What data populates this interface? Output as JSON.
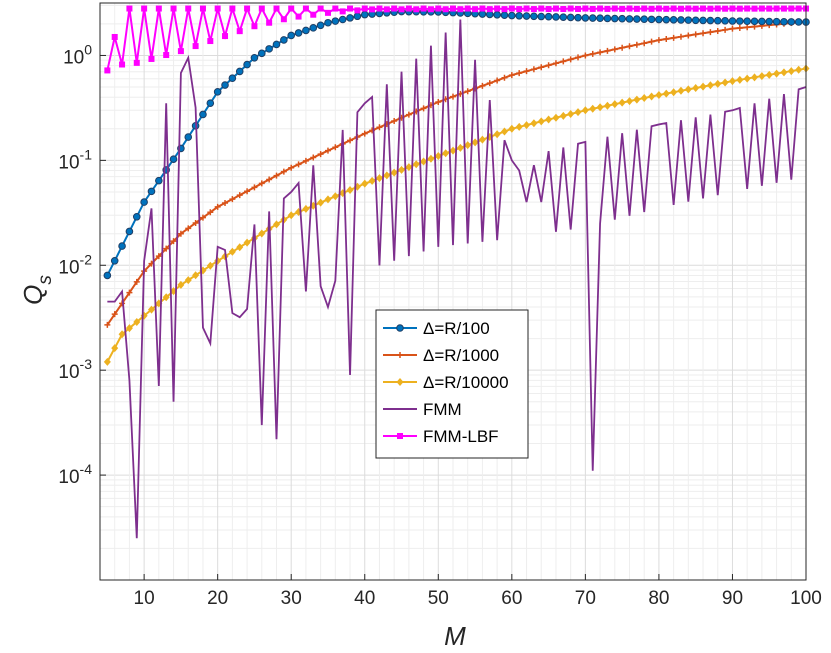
{
  "chart_data": {
    "type": "line",
    "title": "",
    "xlabel": "M",
    "ylabel": "Q",
    "ylabel_subscript": "s",
    "xscale": "linear",
    "yscale": "log",
    "xlim": [
      4,
      100
    ],
    "ylim_exponent": [
      -5,
      0.5
    ],
    "grid": "major+minor",
    "legend_position": "center",
    "x_ticks": [
      10,
      20,
      30,
      40,
      50,
      60,
      70,
      80,
      90,
      100
    ],
    "x_tick_labels": [
      "10",
      "20",
      "30",
      "40",
      "50",
      "60",
      "70",
      "80",
      "90",
      "100"
    ],
    "y_ticks": [
      {
        "base": "10",
        "exp": "0",
        "value": 1
      },
      {
        "base": "10",
        "exp": "-1",
        "value": 0.1
      },
      {
        "base": "10",
        "exp": "-2",
        "value": 0.01
      },
      {
        "base": "10",
        "exp": "-3",
        "value": 0.001
      },
      {
        "base": "10",
        "exp": "-4",
        "value": 0.0001
      }
    ],
    "series": [
      {
        "name": "Δ=R/100",
        "color": "#0072BD",
        "marker": "circle",
        "model": "saturating",
        "x_start": 5,
        "x_end": 100,
        "anchors": [
          [
            5,
            0.008
          ],
          [
            10,
            0.04
          ],
          [
            15,
            0.13
          ],
          [
            20,
            0.45
          ],
          [
            25,
            0.95
          ],
          [
            30,
            1.55
          ],
          [
            35,
            2.05
          ],
          [
            40,
            2.45
          ],
          [
            45,
            2.62
          ],
          [
            50,
            2.6
          ],
          [
            55,
            2.5
          ],
          [
            60,
            2.4
          ],
          [
            70,
            2.28
          ],
          [
            80,
            2.2
          ],
          [
            90,
            2.13
          ],
          [
            100,
            2.08
          ]
        ]
      },
      {
        "name": "Δ=R/1000",
        "color": "#D95319",
        "marker": "plus",
        "model": "smooth",
        "x_start": 5,
        "x_end": 100,
        "anchors": [
          [
            5,
            0.0027
          ],
          [
            10,
            0.0088
          ],
          [
            15,
            0.02
          ],
          [
            20,
            0.036
          ],
          [
            30,
            0.085
          ],
          [
            40,
            0.18
          ],
          [
            50,
            0.36
          ],
          [
            60,
            0.65
          ],
          [
            70,
            1.0
          ],
          [
            80,
            1.4
          ],
          [
            90,
            1.8
          ],
          [
            100,
            2.1
          ]
        ]
      },
      {
        "name": "Δ=R/10000",
        "color": "#EDB120",
        "marker": "diamond",
        "model": "smooth",
        "x_start": 5,
        "x_end": 100,
        "anchors": [
          [
            5,
            0.0012
          ],
          [
            7,
            0.0022
          ],
          [
            10,
            0.0033
          ],
          [
            15,
            0.0065
          ],
          [
            20,
            0.011
          ],
          [
            30,
            0.03
          ],
          [
            40,
            0.06
          ],
          [
            50,
            0.11
          ],
          [
            60,
            0.2
          ],
          [
            70,
            0.3
          ],
          [
            80,
            0.42
          ],
          [
            90,
            0.57
          ],
          [
            100,
            0.75
          ]
        ]
      },
      {
        "name": "FMM",
        "color": "#7E2F8E",
        "marker": "none",
        "model": "oscillating",
        "x_start": 5,
        "x_end": 100,
        "highs": [
          [
            6,
            0.0045
          ],
          [
            10,
            0.011
          ],
          [
            13,
            0.35
          ],
          [
            16,
            0.95
          ],
          [
            20,
            0.012
          ],
          [
            30,
            0.05
          ],
          [
            40,
            0.35
          ],
          [
            45,
            0.7
          ],
          [
            53,
            2.2
          ],
          [
            60,
            0.1
          ],
          [
            70,
            0.15
          ],
          [
            80,
            0.22
          ],
          [
            90,
            0.3
          ],
          [
            100,
            0.5
          ]
        ],
        "lows": [
          [
            7,
            0.001
          ],
          [
            11,
            0.0005
          ],
          [
            15,
            0.002
          ],
          [
            22,
            0.0035
          ],
          [
            30,
            0.005
          ],
          [
            40,
            0.009
          ],
          [
            50,
            0.015
          ],
          [
            60,
            0.018
          ],
          [
            70,
            0.023
          ],
          [
            80,
            0.035
          ],
          [
            90,
            0.05
          ],
          [
            100,
            0.07
          ]
        ],
        "dips": [
          [
            8,
            0.0008
          ],
          [
            9,
            2.5e-05
          ],
          [
            14,
            0.0005
          ],
          [
            19,
            0.0018
          ],
          [
            23,
            0.0032
          ],
          [
            26,
            0.0003
          ],
          [
            28,
            0.00022
          ],
          [
            35,
            0.004
          ],
          [
            38,
            0.0009
          ],
          [
            71,
            0.00011
          ],
          [
            20,
            0.015
          ],
          [
            21,
            0.014
          ],
          [
            61,
            0.08
          ],
          [
            62,
            0.04
          ],
          [
            63,
            0.09
          ],
          [
            64,
            0.04
          ]
        ]
      },
      {
        "name": "FMM-LBF",
        "color": "#FF00FF",
        "marker": "square",
        "model": "zigzag",
        "x_start": 5,
        "x_end": 100,
        "highs": [
          [
            5,
            0.75
          ],
          [
            6,
            1.5
          ],
          [
            8,
            2.8
          ],
          [
            11,
            2.8
          ],
          [
            20,
            2.8
          ],
          [
            40,
            2.8
          ],
          [
            100,
            2.8
          ]
        ],
        "lows": [
          [
            5,
            0.72
          ],
          [
            7,
            0.82
          ],
          [
            9,
            0.85
          ],
          [
            15,
            1.1
          ],
          [
            20,
            1.45
          ],
          [
            25,
            1.9
          ],
          [
            30,
            2.3
          ],
          [
            36,
            2.6
          ],
          [
            41,
            2.75
          ],
          [
            100,
            2.8
          ]
        ]
      }
    ]
  }
}
